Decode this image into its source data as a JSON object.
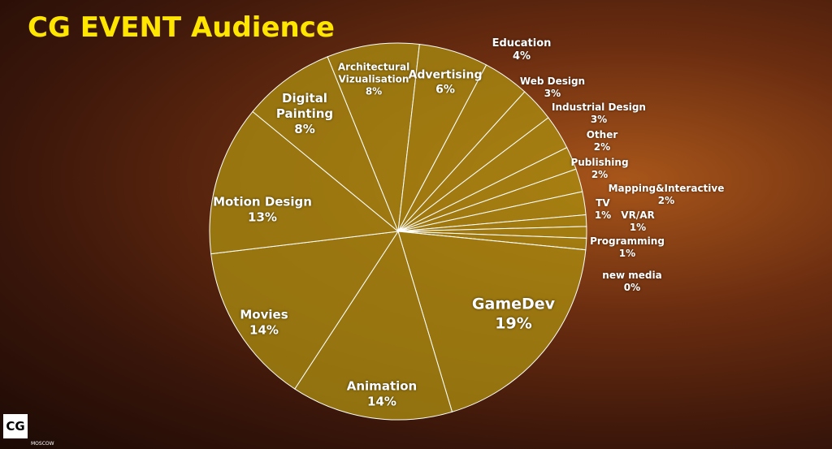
{
  "chart_data": {
    "type": "pie",
    "title": "CG EVENT Audience",
    "categories": [
      "Architectural Vizualisation",
      "Advertising",
      "Education",
      "Web Design",
      "Industrial Design",
      "Other",
      "Publishing",
      "Mapping&Interactive",
      "TV",
      "VR/AR",
      "Programming",
      "new media",
      "GameDev",
      "Animation",
      "Movies",
      "Motion Design",
      "Digital Painting"
    ],
    "values": [
      8,
      6,
      4,
      3,
      3,
      2,
      2,
      2,
      1,
      1,
      1,
      0,
      19,
      14,
      14,
      13,
      8
    ],
    "value_labels": [
      "8%",
      "6%",
      "4%",
      "3%",
      "3%",
      "2%",
      "2%",
      "2%",
      "1%",
      "1%",
      "1%",
      "0%",
      "19%",
      "14%",
      "14%",
      "13%",
      "8%"
    ],
    "color": "#a88a10"
  },
  "logo": "CG",
  "logo_caption": "MOSCOW"
}
